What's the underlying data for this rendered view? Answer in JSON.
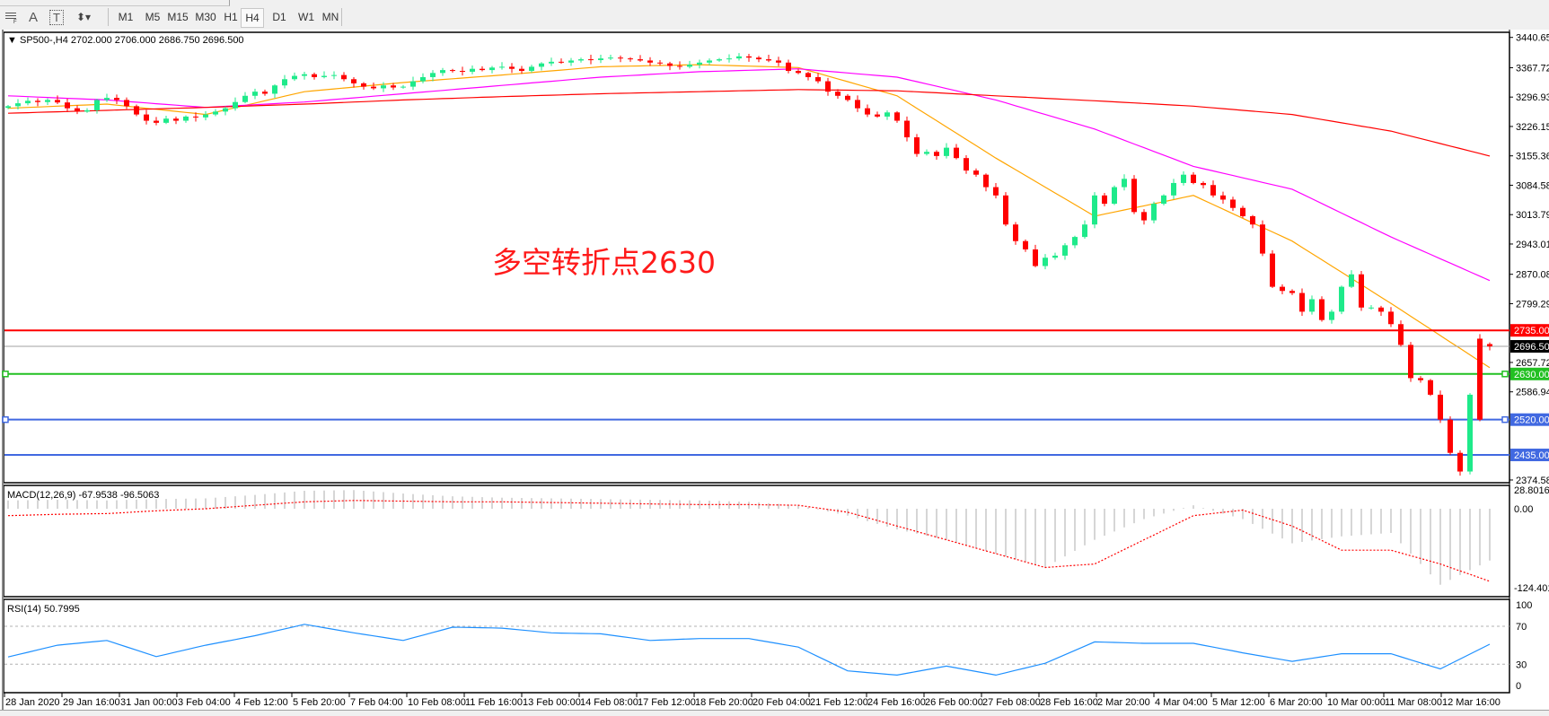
{
  "toolbar": {
    "tools": [
      {
        "label": "",
        "icon": "grid-fibonacci-icon"
      },
      {
        "label": "A",
        "icon": "text-tool-icon"
      },
      {
        "label": "T",
        "icon": "text-label-icon"
      },
      {
        "label": "",
        "icon": "arrows-tool-icon"
      }
    ],
    "timeframes": [
      "M1",
      "M5",
      "M15",
      "M30",
      "H1",
      "H4",
      "D1",
      "W1",
      "MN"
    ],
    "active_timeframe": "H4"
  },
  "chart": {
    "header": "SP500-,H4  2702.000 2706.000 2686.750 2696.500",
    "annotation": "多空转折点2630",
    "annotation_color": "#ff1a1a"
  },
  "chart_data": [
    {
      "type": "candlestick",
      "symbol": "SP500-",
      "timeframe": "H4",
      "last_bar": {
        "open": 2702.0,
        "high": 2706.0,
        "low": 2686.75,
        "close": 2696.5
      },
      "closes": [
        3275,
        3282,
        3288,
        3285,
        3290,
        3284,
        3270,
        3262,
        3265,
        3290,
        3295,
        3290,
        3275,
        3255,
        3240,
        3235,
        3245,
        3240,
        3250,
        3248,
        3255,
        3262,
        3270,
        3285,
        3300,
        3310,
        3305,
        3325,
        3340,
        3348,
        3352,
        3345,
        3348,
        3350,
        3340,
        3330,
        3322,
        3318,
        3325,
        3320,
        3322,
        3335,
        3345,
        3355,
        3362,
        3360,
        3358,
        3365,
        3362,
        3368,
        3370,
        3365,
        3360,
        3370,
        3378,
        3382,
        3380,
        3385,
        3388,
        3386,
        3390,
        3392,
        3390,
        3388,
        3385,
        3380,
        3378,
        3372,
        3370,
        3375,
        3380,
        3385,
        3388,
        3390,
        3395,
        3392,
        3388,
        3385,
        3380,
        3360,
        3355,
        3345,
        3335,
        3310,
        3300,
        3290,
        3270,
        3255,
        3250,
        3260,
        3240,
        3200,
        3160,
        3165,
        3155,
        3175,
        3150,
        3120,
        3110,
        3080,
        3060,
        2990,
        2950,
        2930,
        2890,
        2910,
        2915,
        2940,
        2960,
        2990,
        3060,
        3040,
        3080,
        3100,
        3020,
        3000,
        3040,
        3060,
        3090,
        3110,
        3090,
        3085,
        3060,
        3050,
        3030,
        3010,
        2990,
        2920,
        2840,
        2830,
        2825,
        2780,
        2810,
        2760,
        2780,
        2840,
        2870,
        2790,
        2790,
        2780,
        2750,
        2700,
        2620,
        2615,
        2580,
        2520,
        2440,
        2395,
        2580,
        2520,
        2696.5
      ],
      "open_overrides": {
        "149": 2715,
        "150": 2702
      },
      "moving_averages_every_10_bars": [
        {
          "color": "#ffa500",
          "values": [
            3270,
            3280,
            3255,
            3310,
            3332,
            3350,
            3370,
            3375,
            3368,
            3300,
            3150,
            3010,
            3060,
            2950,
            2800,
            2645
          ]
        },
        {
          "color": "#ff00ff",
          "values": [
            3300,
            3290,
            3272,
            3285,
            3305,
            3325,
            3345,
            3358,
            3365,
            3345,
            3290,
            3220,
            3130,
            3075,
            2960,
            2855
          ]
        },
        {
          "color": "#ff0000",
          "values": [
            3258,
            3265,
            3272,
            3280,
            3290,
            3298,
            3305,
            3310,
            3315,
            3312,
            3300,
            3288,
            3275,
            3255,
            3215,
            3155
          ]
        }
      ],
      "horizontal_lines": [
        {
          "price": "2735.000",
          "color": "#ff0000",
          "label_text_color": "#ffffff"
        },
        {
          "price": "2696.500",
          "color": "#a0a0a0",
          "label_bg": "#000000",
          "label_text_color": "#ffffff"
        },
        {
          "price": "2630.000",
          "color": "#22c022",
          "label_text_color": "#ffffff"
        },
        {
          "price": "2520.000",
          "color": "#4169e1",
          "label_text_color": "#ffffff"
        },
        {
          "price": "2435.000",
          "color": "#4169e1",
          "label_text_color": "#ffffff"
        }
      ],
      "y_ticks": [
        "3440.650",
        "3367.720",
        "3296.935",
        "3226.150",
        "3155.365",
        "3084.580",
        "3013.795",
        "2943.010",
        "2870.080",
        "2799.295",
        "2657.725",
        "2586.940",
        "2374.585"
      ],
      "ylim": [
        2367,
        3452
      ],
      "bull_color": "#1eea8a",
      "bear_color": "#ff0000"
    },
    {
      "type": "bar+line",
      "title": "MACD(12,26,9) -67.9538 -96.5063",
      "histogram_every_5_bars": [
        12,
        13,
        12,
        14,
        15,
        20,
        26,
        27,
        22,
        18,
        16,
        15,
        14,
        13,
        12,
        10,
        5,
        -10,
        -30,
        -45,
        -65,
        -85,
        -45,
        -15,
        5,
        -15,
        -50,
        -40,
        -35,
        -110,
        -75
      ],
      "signal_every_5_bars": [
        -10,
        -8,
        -7,
        -3,
        0,
        5,
        10,
        12,
        11,
        10,
        10,
        9,
        8,
        7,
        6,
        6,
        5,
        -5,
        -25,
        -45,
        -65,
        -85,
        -80,
        -45,
        -10,
        -2,
        -25,
        -60,
        -60,
        -80,
        -105
      ],
      "y_ticks": [
        "28.8016",
        "0.00",
        "-124.4011"
      ],
      "ylim": [
        -128,
        31
      ],
      "histogram_color": "#c0c0c0",
      "signal_color": "#ff0000"
    },
    {
      "type": "line",
      "title": "RSI(14) 50.7995",
      "values_every_5_bars": [
        37.6,
        50,
        55,
        38,
        50,
        60,
        72,
        63,
        55,
        69,
        68,
        63,
        62,
        55,
        57,
        57,
        48,
        23,
        18.5,
        28,
        18.5,
        31,
        53.5,
        52,
        52,
        42,
        33,
        41,
        41,
        25,
        51
      ],
      "levels": [
        70,
        30
      ],
      "y_ticks": [
        "100",
        "70",
        "30",
        "0"
      ],
      "ylim": [
        0,
        100
      ],
      "color": "#1e90ff"
    }
  ],
  "time_axis": [
    "28 Jan 2020",
    "29 Jan 16:00",
    "31 Jan 00:00",
    "3 Feb 04:00",
    "4 Feb 12:00",
    "5 Feb 20:00",
    "7 Feb 04:00",
    "10 Feb 08:00",
    "11 Feb 16:00",
    "13 Feb 00:00",
    "14 Feb 08:00",
    "17 Feb 12:00",
    "18 Feb 20:00",
    "20 Feb 04:00",
    "21 Feb 12:00",
    "24 Feb 16:00",
    "26 Feb 00:00",
    "27 Feb 08:00",
    "28 Feb 16:00",
    "2 Mar 20:00",
    "4 Mar 04:00",
    "5 Mar 12:00",
    "6 Mar 20:00",
    "10 Mar 00:00",
    "11 Mar 08:00",
    "12 Mar 16:00"
  ]
}
